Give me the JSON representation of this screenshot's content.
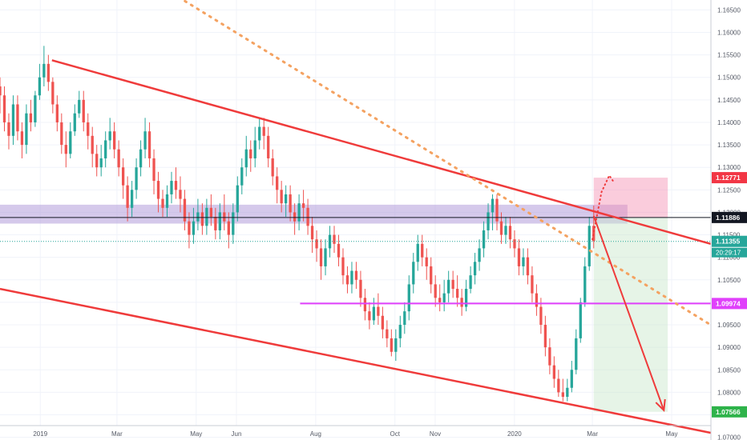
{
  "chart_data": {
    "type": "candlestick",
    "title": "",
    "xlabel": "",
    "ylabel": "",
    "x_tick_labels": [
      "2019",
      "Mar",
      "May",
      "Jun",
      "Aug",
      "Oct",
      "Nov",
      "2020",
      "Mar",
      "May"
    ],
    "y_tick_labels": [
      "1.16500",
      "1.16000",
      "1.15500",
      "1.15000",
      "1.14500",
      "1.14000",
      "1.13500",
      "1.13000",
      "1.12500",
      "1.12000",
      "1.11500",
      "1.11000",
      "1.10500",
      "1.10000",
      "1.09500",
      "1.09000",
      "1.08500",
      "1.08000",
      "1.07500",
      "1.07000"
    ],
    "ylim": [
      1.0694,
      1.1672
    ],
    "grid": true,
    "price_labels": {
      "take_profit_top": "1.12771",
      "current": "1.11886",
      "last": "1.11355",
      "countdown": "20:29:17",
      "horizontal_level": "1.09974",
      "target": "1.07566"
    },
    "price_lines": [
      {
        "name": "horizontal_level",
        "value": 1.09974,
        "color": "#e040fb"
      },
      {
        "name": "current",
        "value": 1.11886,
        "color": "#131722"
      },
      {
        "name": "last",
        "value": 1.11355,
        "color": "#26a69a"
      }
    ],
    "zones": [
      {
        "kind": "resistance",
        "from": 1.1175,
        "to": 1.1217,
        "color": "#b39ddb"
      },
      {
        "kind": "stop",
        "from": 1.11886,
        "to": 1.12771,
        "color": "#f48fb1"
      },
      {
        "kind": "profit",
        "from": 1.07566,
        "to": 1.11886,
        "color": "#c8e6c9"
      }
    ],
    "trendlines": [
      {
        "kind": "channel-upper",
        "from": [
          "2019-01-10",
          1.1538
        ],
        "to": [
          "2020-05-31",
          1.113
        ]
      },
      {
        "kind": "channel-lower",
        "from": [
          "2018-12-01",
          1.103
        ],
        "to": [
          "2020-05-31",
          1.071
        ]
      },
      {
        "kind": "dotted-trend",
        "from": [
          "2019-03-25",
          1.172
        ],
        "to": [
          "2020-05-31",
          1.095
        ]
      }
    ],
    "projection": [
      [
        "2020-03-02",
        1.1192
      ],
      [
        "2020-04-25",
        1.076
      ]
    ],
    "series": [
      {
        "values": [
          [
            1.148,
            1.146,
            1.15,
            1.142
          ],
          [
            1.146,
            1.14,
            1.148,
            1.138
          ],
          [
            1.14,
            1.137,
            1.142,
            1.134
          ],
          [
            1.137,
            1.144,
            1.146,
            1.135
          ],
          [
            1.144,
            1.138,
            1.146,
            1.136
          ],
          [
            1.138,
            1.135,
            1.14,
            1.132
          ],
          [
            1.135,
            1.142,
            1.144,
            1.133
          ],
          [
            1.142,
            1.14,
            1.145,
            1.138
          ],
          [
            1.14,
            1.146,
            1.147,
            1.139
          ],
          [
            1.146,
            1.15,
            1.153,
            1.145
          ],
          [
            1.15,
            1.153,
            1.157,
            1.148
          ],
          [
            1.153,
            1.149,
            1.155,
            1.147
          ],
          [
            1.149,
            1.144,
            1.15,
            1.142
          ],
          [
            1.144,
            1.14,
            1.146,
            1.138
          ],
          [
            1.14,
            1.135,
            1.142,
            1.133
          ],
          [
            1.135,
            1.133,
            1.138,
            1.13
          ],
          [
            1.133,
            1.138,
            1.14,
            1.132
          ],
          [
            1.138,
            1.142,
            1.144,
            1.137
          ],
          [
            1.142,
            1.145,
            1.147,
            1.141
          ],
          [
            1.145,
            1.14,
            1.147,
            1.138
          ],
          [
            1.14,
            1.137,
            1.142,
            1.134
          ],
          [
            1.137,
            1.133,
            1.139,
            1.13
          ],
          [
            1.133,
            1.13,
            1.135,
            1.128
          ],
          [
            1.13,
            1.132,
            1.135,
            1.128
          ],
          [
            1.132,
            1.136,
            1.138,
            1.13
          ],
          [
            1.136,
            1.138,
            1.141,
            1.134
          ],
          [
            1.138,
            1.134,
            1.14,
            1.132
          ],
          [
            1.134,
            1.13,
            1.136,
            1.128
          ],
          [
            1.13,
            1.126,
            1.132,
            1.123
          ],
          [
            1.126,
            1.121,
            1.128,
            1.118
          ],
          [
            1.121,
            1.125,
            1.127,
            1.119
          ],
          [
            1.125,
            1.13,
            1.132,
            1.123
          ],
          [
            1.13,
            1.134,
            1.136,
            1.128
          ],
          [
            1.134,
            1.138,
            1.141,
            1.132
          ],
          [
            1.138,
            1.132,
            1.14,
            1.13
          ],
          [
            1.132,
            1.127,
            1.134,
            1.124
          ],
          [
            1.127,
            1.123,
            1.129,
            1.12
          ],
          [
            1.123,
            1.121,
            1.125,
            1.119
          ],
          [
            1.121,
            1.124,
            1.126,
            1.119
          ],
          [
            1.124,
            1.127,
            1.129,
            1.122
          ],
          [
            1.127,
            1.125,
            1.13,
            1.123
          ],
          [
            1.125,
            1.123,
            1.128,
            1.12
          ],
          [
            1.123,
            1.118,
            1.125,
            1.116
          ],
          [
            1.118,
            1.115,
            1.12,
            1.112
          ],
          [
            1.115,
            1.118,
            1.121,
            1.113
          ],
          [
            1.118,
            1.12,
            1.123,
            1.116
          ],
          [
            1.12,
            1.117,
            1.122,
            1.115
          ],
          [
            1.117,
            1.121,
            1.123,
            1.115
          ],
          [
            1.121,
            1.119,
            1.124,
            1.117
          ],
          [
            1.119,
            1.116,
            1.121,
            1.114
          ],
          [
            1.116,
            1.12,
            1.122,
            1.114
          ],
          [
            1.12,
            1.118,
            1.124,
            1.116
          ],
          [
            1.118,
            1.115,
            1.12,
            1.112
          ],
          [
            1.115,
            1.12,
            1.122,
            1.113
          ],
          [
            1.12,
            1.126,
            1.128,
            1.118
          ],
          [
            1.126,
            1.13,
            1.132,
            1.124
          ],
          [
            1.13,
            1.134,
            1.137,
            1.128
          ],
          [
            1.134,
            1.132,
            1.136,
            1.129
          ],
          [
            1.132,
            1.136,
            1.139,
            1.13
          ],
          [
            1.136,
            1.139,
            1.141,
            1.134
          ],
          [
            1.139,
            1.137,
            1.141,
            1.134
          ],
          [
            1.137,
            1.132,
            1.139,
            1.13
          ],
          [
            1.132,
            1.128,
            1.134,
            1.126
          ],
          [
            1.128,
            1.125,
            1.13,
            1.122
          ],
          [
            1.125,
            1.122,
            1.127,
            1.12
          ],
          [
            1.122,
            1.124,
            1.126,
            1.119
          ],
          [
            1.124,
            1.12,
            1.126,
            1.118
          ],
          [
            1.12,
            1.118,
            1.122,
            1.115
          ],
          [
            1.118,
            1.122,
            1.124,
            1.116
          ],
          [
            1.122,
            1.121,
            1.125,
            1.118
          ],
          [
            1.121,
            1.117,
            1.123,
            1.115
          ],
          [
            1.117,
            1.114,
            1.119,
            1.111
          ],
          [
            1.114,
            1.112,
            1.116,
            1.109
          ],
          [
            1.112,
            1.108,
            1.114,
            1.105
          ],
          [
            1.108,
            1.112,
            1.114,
            1.106
          ],
          [
            1.112,
            1.115,
            1.117,
            1.11
          ],
          [
            1.115,
            1.113,
            1.117,
            1.111
          ],
          [
            1.113,
            1.11,
            1.115,
            1.108
          ],
          [
            1.11,
            1.106,
            1.112,
            1.104
          ],
          [
            1.106,
            1.104,
            1.108,
            1.102
          ],
          [
            1.104,
            1.107,
            1.109,
            1.102
          ],
          [
            1.107,
            1.105,
            1.109,
            1.103
          ],
          [
            1.105,
            1.101,
            1.107,
            1.099
          ],
          [
            1.101,
            1.098,
            1.103,
            1.096
          ],
          [
            1.098,
            1.096,
            1.1,
            1.094
          ],
          [
            1.096,
            1.099,
            1.101,
            1.095
          ],
          [
            1.099,
            1.097,
            1.102,
            1.095
          ],
          [
            1.097,
            1.094,
            1.099,
            1.092
          ],
          [
            1.094,
            1.092,
            1.096,
            1.09
          ],
          [
            1.092,
            1.089,
            1.094,
            1.088
          ],
          [
            1.089,
            1.092,
            1.094,
            1.087
          ],
          [
            1.092,
            1.095,
            1.097,
            1.09
          ],
          [
            1.095,
            1.098,
            1.1,
            1.093
          ],
          [
            1.098,
            1.104,
            1.106,
            1.096
          ],
          [
            1.104,
            1.109,
            1.111,
            1.102
          ],
          [
            1.109,
            1.113,
            1.115,
            1.107
          ],
          [
            1.113,
            1.11,
            1.115,
            1.108
          ],
          [
            1.11,
            1.108,
            1.112,
            1.105
          ],
          [
            1.108,
            1.104,
            1.11,
            1.102
          ],
          [
            1.104,
            1.101,
            1.106,
            1.099
          ],
          [
            1.101,
            1.1,
            1.104,
            1.098
          ],
          [
            1.1,
            1.102,
            1.105,
            1.098
          ],
          [
            1.102,
            1.105,
            1.107,
            1.1
          ],
          [
            1.105,
            1.103,
            1.107,
            1.101
          ],
          [
            1.103,
            1.101,
            1.106,
            1.099
          ],
          [
            1.101,
            1.099,
            1.103,
            1.097
          ],
          [
            1.099,
            1.103,
            1.105,
            1.098
          ],
          [
            1.103,
            1.106,
            1.108,
            1.102
          ],
          [
            1.106,
            1.109,
            1.111,
            1.104
          ],
          [
            1.109,
            1.112,
            1.114,
            1.107
          ],
          [
            1.112,
            1.116,
            1.118,
            1.11
          ],
          [
            1.116,
            1.12,
            1.122,
            1.114
          ],
          [
            1.12,
            1.123,
            1.124,
            1.116
          ],
          [
            1.123,
            1.118,
            1.124,
            1.116
          ],
          [
            1.118,
            1.115,
            1.12,
            1.113
          ],
          [
            1.115,
            1.117,
            1.119,
            1.113
          ],
          [
            1.117,
            1.114,
            1.119,
            1.112
          ],
          [
            1.114,
            1.112,
            1.116,
            1.11
          ],
          [
            1.112,
            1.108,
            1.114,
            1.106
          ],
          [
            1.108,
            1.11,
            1.112,
            1.106
          ],
          [
            1.11,
            1.106,
            1.112,
            1.104
          ],
          [
            1.106,
            1.102,
            1.108,
            1.1
          ],
          [
            1.102,
            1.099,
            1.104,
            1.097
          ],
          [
            1.099,
            1.095,
            1.101,
            1.093
          ],
          [
            1.095,
            1.09,
            1.097,
            1.088
          ],
          [
            1.09,
            1.086,
            1.092,
            1.084
          ],
          [
            1.086,
            1.083,
            1.088,
            1.081
          ],
          [
            1.083,
            1.08,
            1.085,
            1.079
          ],
          [
            1.08,
            1.079,
            1.083,
            1.078
          ],
          [
            1.079,
            1.081,
            1.083,
            1.078
          ],
          [
            1.081,
            1.085,
            1.087,
            1.08
          ],
          [
            1.085,
            1.092,
            1.094,
            1.084
          ],
          [
            1.092,
            1.1,
            1.101,
            1.091
          ],
          [
            1.1,
            1.108,
            1.11,
            1.099
          ],
          [
            1.108,
            1.117,
            1.119,
            1.107
          ],
          [
            1.117,
            1.1136,
            1.1215,
            1.112
          ]
        ]
      }
    ]
  }
}
